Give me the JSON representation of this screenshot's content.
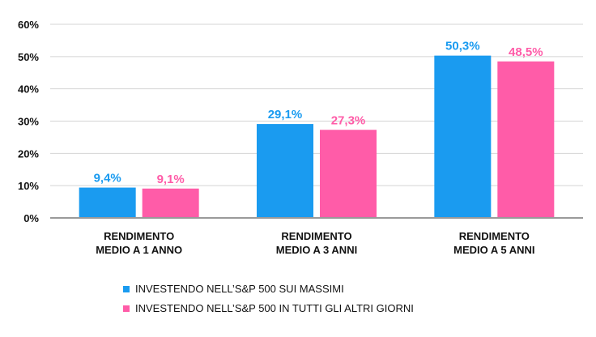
{
  "chart_data": {
    "type": "bar",
    "title": "",
    "xlabel": "",
    "ylabel": "",
    "ylim": [
      0,
      60
    ],
    "yticks": [
      "0%",
      "10%",
      "20%",
      "30%",
      "40%",
      "50%",
      "60%"
    ],
    "grid": true,
    "legend": "bottom",
    "categories": [
      [
        "RENDIMENTO",
        "MEDIO A 1 ANNO"
      ],
      [
        "RENDIMENTO",
        "MEDIO A 3 ANNI"
      ],
      [
        "RENDIMENTO",
        "MEDIO A 5 ANNI"
      ]
    ],
    "series": [
      {
        "name": "INVESTENDO NELL’S&P 500 SUI MASSIMI",
        "values": [
          9.4,
          29.1,
          50.3
        ],
        "labels": [
          "9,4%",
          "29,1%",
          "50,3%"
        ],
        "color": "#1a9bf0"
      },
      {
        "name": "INVESTENDO NELL’S&P 500 IN TUTTI GLI ALTRI GIORNI",
        "values": [
          9.1,
          27.3,
          48.5
        ],
        "labels": [
          "9,1%",
          "27,3%",
          "48,5%"
        ],
        "color": "#ff5ca8"
      }
    ]
  }
}
